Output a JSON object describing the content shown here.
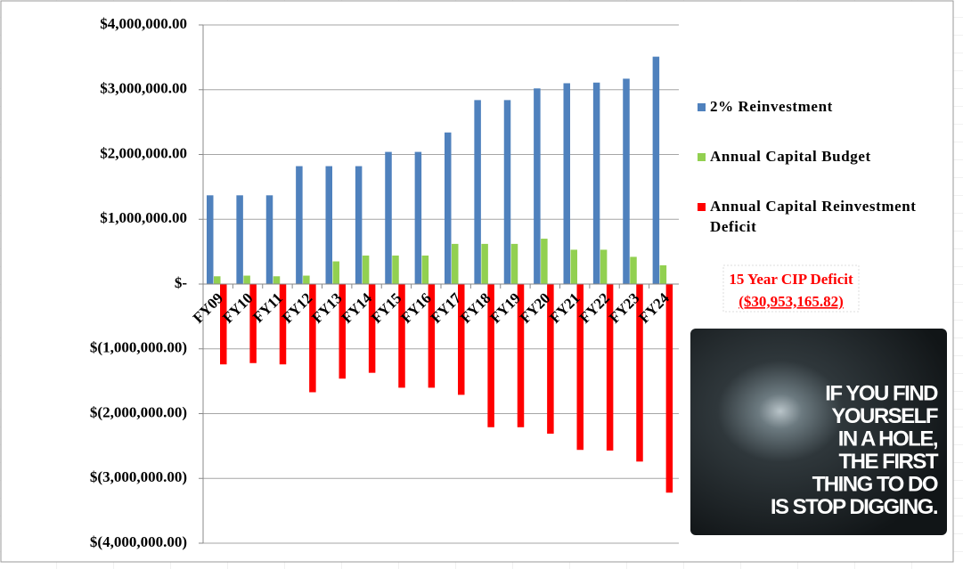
{
  "chart_data": {
    "type": "bar",
    "categories": [
      "FY09",
      "FY10",
      "FY11",
      "FY12",
      "FY13",
      "FY14",
      "FY15",
      "FY16",
      "FY17",
      "FY18",
      "FY19",
      "FY20",
      "FY21",
      "FY22",
      "FY23",
      "FY24"
    ],
    "series": [
      {
        "name": "2% Reinvestment",
        "color": "#4f81bd",
        "values": [
          1370000,
          1370000,
          1370000,
          1820000,
          1820000,
          1820000,
          2040000,
          2040000,
          2340000,
          2840000,
          2840000,
          3020000,
          3100000,
          3110000,
          3170000,
          3510000
        ]
      },
      {
        "name": "Annual Capital Budget",
        "color": "#92d050",
        "values": [
          120000,
          130000,
          120000,
          130000,
          350000,
          440000,
          440000,
          440000,
          620000,
          620000,
          620000,
          700000,
          530000,
          530000,
          420000,
          290000
        ]
      },
      {
        "name": "Annual Capital Reinvestment Deficit",
        "color": "#ff0000",
        "values": [
          -1240000,
          -1220000,
          -1240000,
          -1670000,
          -1460000,
          -1370000,
          -1600000,
          -1600000,
          -1710000,
          -2210000,
          -2210000,
          -2310000,
          -2560000,
          -2570000,
          -2740000,
          -3220000
        ]
      }
    ],
    "ylim": [
      -4000000,
      4000000
    ],
    "yticks": [
      {
        "value": 4000000,
        "label": "$4,000,000.00"
      },
      {
        "value": 3000000,
        "label": "$3,000,000.00"
      },
      {
        "value": 2000000,
        "label": "$2,000,000.00"
      },
      {
        "value": 1000000,
        "label": "$1,000,000.00"
      },
      {
        "value": 0,
        "label": "$-"
      },
      {
        "value": -1000000,
        "label": "$(1,000,000.00)"
      },
      {
        "value": -2000000,
        "label": "$(2,000,000.00)"
      },
      {
        "value": -3000000,
        "label": "$(3,000,000.00)"
      },
      {
        "value": -4000000,
        "label": "$(4,000,000.00)"
      }
    ],
    "grid": true,
    "legend": "right",
    "annotations": [
      "15 Year CIP Deficit",
      "($30,953,165.82)"
    ],
    "image_text": [
      "IF YOU FIND",
      "YOURSELF",
      "IN A HOLE,",
      "THE FIRST",
      "THING TO DO",
      "IS STOP DIGGING."
    ]
  }
}
